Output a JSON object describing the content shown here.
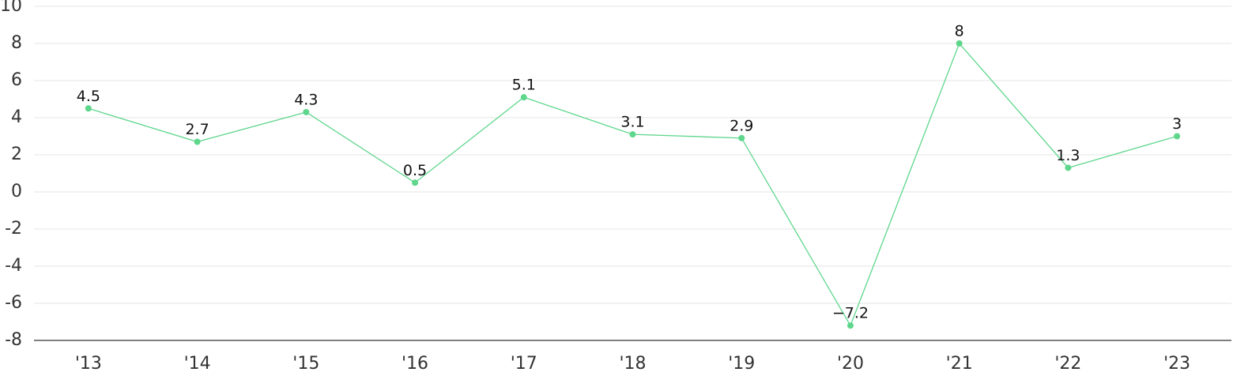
{
  "chart_data": {
    "type": "line",
    "categories": [
      "'13",
      "'14",
      "'15",
      "'16",
      "'17",
      "'18",
      "'19",
      "'20",
      "'21",
      "'22",
      "'23"
    ],
    "values": [
      4.5,
      2.7,
      4.3,
      0.5,
      5.1,
      3.1,
      2.9,
      -7.2,
      8,
      1.3,
      3
    ],
    "value_labels": [
      "4.5",
      "2.7",
      "4.3",
      "0.5",
      "5.1",
      "3.1",
      "2.9",
      "−7.2",
      "8",
      "1.3",
      "3"
    ],
    "color": "#5ed68c",
    "ylim": [
      -8,
      10
    ],
    "yticks": [
      -8,
      -6,
      -4,
      -2,
      0,
      2,
      4,
      6,
      8,
      10
    ],
    "grid": true
  }
}
